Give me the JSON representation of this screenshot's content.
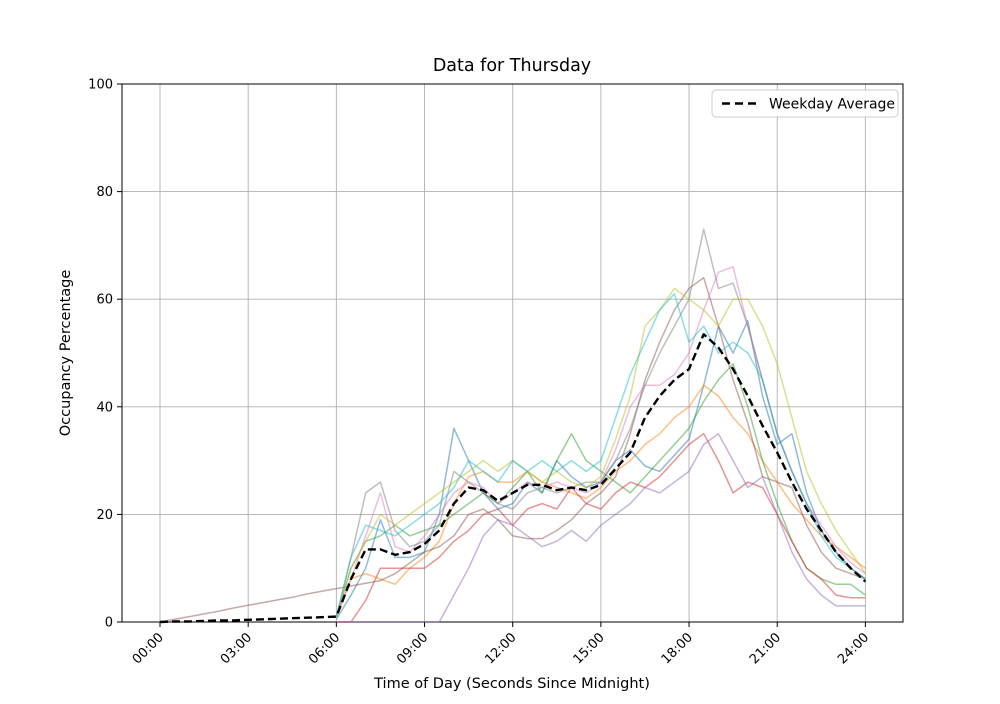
{
  "figure": {
    "background": "#ffffff",
    "frame_color": "#000000"
  },
  "chart_data": {
    "type": "line",
    "title": "Data for Thursday",
    "xlabel": "Time of Day (Seconds Since Midnight)",
    "ylabel": "Occupancy Percentage",
    "ylim": [
      0,
      100
    ],
    "grid": true,
    "grid_color": "#b0b0b0",
    "x_ticks": {
      "hours": [
        0,
        3,
        6,
        9,
        12,
        15,
        18,
        21,
        24
      ],
      "labels": [
        "00:00",
        "03:00",
        "06:00",
        "09:00",
        "12:00",
        "15:00",
        "18:00",
        "21:00",
        "24:00"
      ]
    },
    "y_ticks": [
      0,
      20,
      40,
      60,
      80,
      100
    ],
    "legend": {
      "position": "upper right",
      "entries": [
        {
          "label": "Weekday Average",
          "style": "dashed",
          "color": "#000000"
        }
      ]
    },
    "x_hours": [
      0,
      0.5,
      1,
      1.5,
      2,
      2.5,
      3,
      3.5,
      4,
      4.5,
      5,
      5.5,
      6,
      6.5,
      7,
      7.5,
      8,
      8.5,
      9,
      9.5,
      10,
      10.5,
      11,
      11.5,
      12,
      12.5,
      13,
      13.5,
      14,
      14.5,
      15,
      15.5,
      16,
      16.5,
      17,
      17.5,
      18,
      18.5,
      19,
      19.5,
      20,
      20.5,
      21,
      21.5,
      22,
      22.5,
      23,
      23.5,
      24
    ],
    "series": [
      {
        "name": "blue",
        "color": "#1f77b4",
        "alpha": 0.5,
        "values": [
          null,
          null,
          null,
          null,
          null,
          null,
          null,
          null,
          null,
          null,
          null,
          null,
          0.5,
          5,
          10,
          19,
          12,
          12,
          13,
          20,
          36,
          30,
          24,
          21,
          22,
          26,
          24,
          30,
          27,
          25,
          26,
          30,
          32,
          29,
          28,
          31,
          34,
          44,
          55,
          50,
          56,
          42,
          33,
          35,
          24,
          17,
          13,
          10,
          8
        ]
      },
      {
        "name": "orange",
        "color": "#ff7f0e",
        "alpha": 0.5,
        "values": [
          null,
          null,
          null,
          null,
          null,
          null,
          null,
          null,
          null,
          null,
          null,
          null,
          1,
          8,
          9,
          8,
          7,
          10,
          12,
          15,
          22,
          27,
          28,
          26,
          26,
          28,
          26,
          25,
          24,
          23,
          25,
          28,
          30,
          33,
          35,
          38,
          40,
          44,
          42,
          38,
          35,
          30,
          26,
          22,
          19,
          16,
          14,
          12,
          10
        ]
      },
      {
        "name": "green",
        "color": "#2ca02c",
        "alpha": 0.5,
        "values": [
          null,
          null,
          null,
          null,
          null,
          null,
          null,
          null,
          null,
          null,
          null,
          null,
          1,
          10,
          15,
          16,
          18,
          16,
          17,
          18,
          20,
          22,
          24,
          22,
          25,
          28,
          24,
          30,
          35,
          30,
          28,
          26,
          24,
          27,
          30,
          33,
          36,
          41,
          45,
          48,
          40,
          30,
          22,
          15,
          10,
          8,
          7,
          7,
          5
        ]
      },
      {
        "name": "red",
        "color": "#d62728",
        "alpha": 0.5,
        "values": [
          null,
          null,
          null,
          null,
          null,
          null,
          null,
          null,
          null,
          null,
          null,
          null,
          0,
          0,
          4,
          10,
          10,
          10,
          10,
          12,
          15,
          17,
          20,
          21,
          18,
          21,
          22,
          21,
          25,
          22,
          21,
          24,
          26,
          25,
          27,
          30,
          33,
          35,
          30,
          24,
          26,
          25,
          20,
          15,
          10,
          8,
          5,
          4.5,
          4.5
        ]
      },
      {
        "name": "purple",
        "color": "#9467bd",
        "alpha": 0.5,
        "values": [
          null,
          null,
          null,
          null,
          null,
          null,
          null,
          null,
          null,
          null,
          null,
          null,
          0,
          0,
          0,
          0,
          0,
          0,
          0,
          0,
          5,
          10,
          16,
          19,
          18,
          16,
          14,
          15,
          17,
          15,
          18,
          20,
          22,
          25,
          24,
          26,
          28,
          33,
          35,
          30,
          25,
          27,
          20,
          13,
          8,
          5,
          3,
          3,
          3
        ]
      },
      {
        "name": "brown",
        "color": "#8c564b",
        "alpha": 0.5,
        "values": [
          0,
          0.5,
          1,
          1.5,
          2,
          2.6,
          3.1,
          3.6,
          4.1,
          4.6,
          5.2,
          5.7,
          6.2,
          6.7,
          7.2,
          7.7,
          9,
          11,
          13,
          14,
          16,
          20,
          21,
          19,
          16,
          15.5,
          15.5,
          17,
          19,
          22,
          24,
          27,
          35,
          45,
          52,
          58,
          62,
          64,
          55,
          45,
          37,
          27,
          26,
          25,
          18,
          13,
          10,
          9,
          8
        ]
      },
      {
        "name": "pink",
        "color": "#e377c2",
        "alpha": 0.5,
        "values": [
          null,
          null,
          null,
          null,
          null,
          null,
          null,
          null,
          null,
          null,
          null,
          null,
          1,
          8,
          16,
          24,
          14,
          13,
          16,
          20,
          24,
          26,
          25,
          22,
          24,
          26,
          25,
          26,
          25,
          24,
          26,
          32,
          40,
          44,
          44,
          46,
          50,
          58,
          65,
          66,
          55,
          45,
          35,
          28,
          22,
          18,
          14,
          11,
          9
        ]
      },
      {
        "name": "gray",
        "color": "#7f7f7f",
        "alpha": 0.5,
        "values": [
          null,
          null,
          null,
          null,
          null,
          null,
          null,
          null,
          null,
          null,
          null,
          null,
          1,
          12,
          24,
          26,
          17,
          14,
          15,
          18,
          28,
          26,
          24,
          22,
          21,
          24,
          25,
          24,
          25,
          26,
          26,
          30,
          36,
          44,
          50,
          55,
          60,
          73,
          62,
          63,
          55,
          45,
          35,
          28,
          22,
          17,
          13,
          10,
          8
        ]
      },
      {
        "name": "olive",
        "color": "#bcbd22",
        "alpha": 0.5,
        "values": [
          null,
          null,
          null,
          null,
          null,
          null,
          null,
          null,
          null,
          null,
          null,
          null,
          1,
          10,
          15,
          20,
          18,
          20,
          22,
          24,
          26,
          28,
          30,
          28,
          30,
          28,
          26,
          28,
          26,
          25,
          27,
          34,
          42,
          55,
          58,
          62,
          60,
          58,
          55,
          60,
          60,
          55,
          48,
          38,
          28,
          22,
          17,
          13,
          9
        ]
      },
      {
        "name": "cyan",
        "color": "#17becf",
        "alpha": 0.5,
        "values": [
          null,
          null,
          null,
          null,
          null,
          null,
          null,
          null,
          null,
          null,
          null,
          null,
          1,
          12,
          18,
          17,
          16,
          18,
          20,
          22,
          25,
          30,
          28,
          26,
          30,
          28,
          30,
          28,
          30,
          28,
          30,
          38,
          46,
          52,
          58,
          61,
          52,
          55,
          50,
          52,
          50,
          45,
          35,
          28,
          22,
          16,
          12,
          10,
          8
        ]
      }
    ],
    "average_series": {
      "name": "Weekday Average",
      "color": "#000000",
      "dashed": true,
      "linewidth": 2.4,
      "values": [
        0,
        0.1,
        0.1,
        0.2,
        0.3,
        0.3,
        0.4,
        0.5,
        0.6,
        0.7,
        0.8,
        0.9,
        1,
        8,
        13.5,
        13.5,
        12.5,
        13,
        14.5,
        17,
        22,
        25,
        24.5,
        22.5,
        24,
        25.5,
        25.5,
        24.5,
        25,
        24.5,
        25.5,
        28.5,
        31.5,
        38,
        42,
        45,
        47,
        53.5,
        51,
        47,
        42,
        36.5,
        31.5,
        26,
        21,
        17,
        13,
        10,
        7.5
      ]
    }
  }
}
